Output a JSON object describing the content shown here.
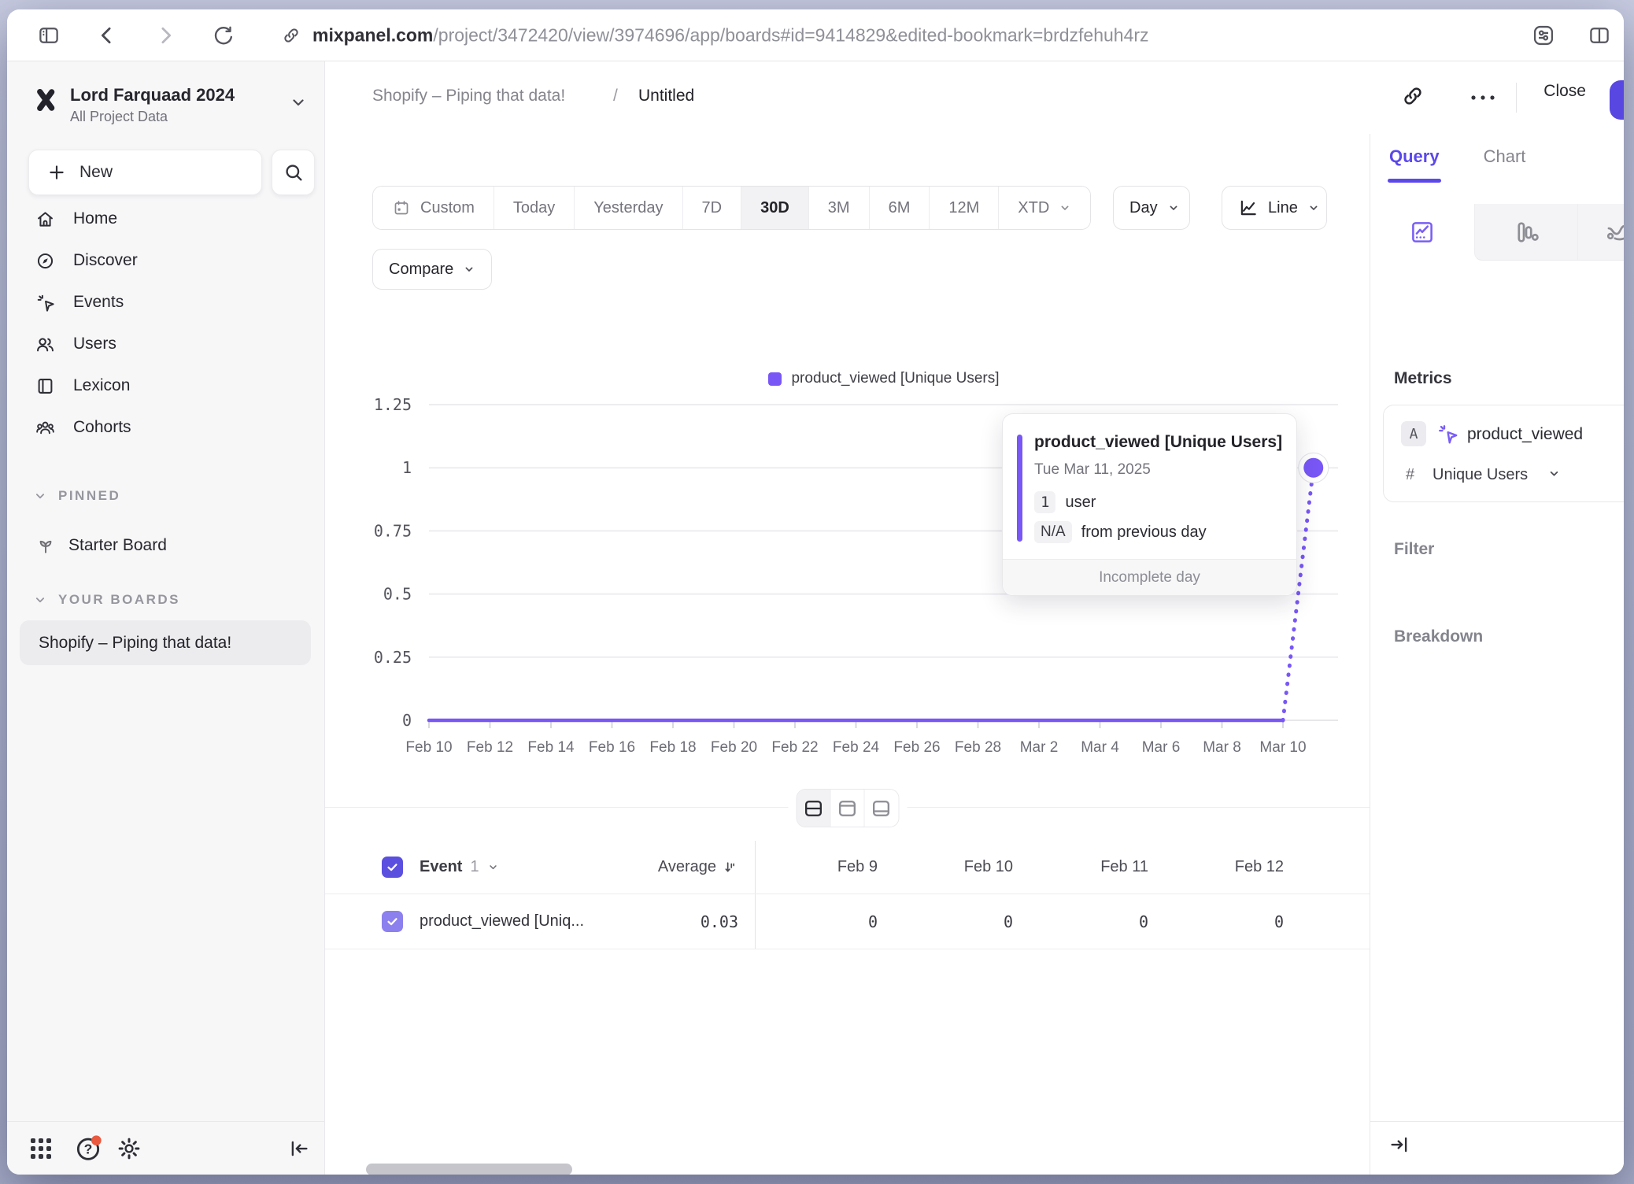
{
  "browser": {
    "url_host": "mixpanel.com",
    "url_path": "/project/3472420/view/3974696/app/boards#id=9414829&edited-bookmark=brdzfehuh4rz"
  },
  "workspace": {
    "name": "Lord Farquaad 2024",
    "subtitle": "All Project Data"
  },
  "sidebar": {
    "new_label": "New",
    "nav": [
      {
        "label": "Home"
      },
      {
        "label": "Discover"
      },
      {
        "label": "Events"
      },
      {
        "label": "Users"
      },
      {
        "label": "Lexicon"
      },
      {
        "label": "Cohorts"
      }
    ],
    "pinned_header": "PINNED",
    "pinned": [
      {
        "label": "Starter Board"
      }
    ],
    "boards_header": "YOUR BOARDS",
    "boards": [
      {
        "label": "Shopify – Piping that data!"
      }
    ]
  },
  "board_header": {
    "board": "Shopify – Piping that data!",
    "separator": "/",
    "page": "Untitled",
    "close": "Close"
  },
  "toolbar": {
    "ranges": [
      "Custom",
      "Today",
      "Yesterday",
      "7D",
      "30D",
      "3M",
      "6M",
      "12M",
      "XTD"
    ],
    "selected": "30D",
    "granularity": "Day",
    "chart_type": "Line",
    "compare": "Compare"
  },
  "chart_data": {
    "type": "line",
    "legend": "product_viewed [Unique Users]",
    "color": "#7857f6",
    "ylim": [
      0,
      1.25
    ],
    "y_ticks": [
      "0",
      "0.25",
      "0.5",
      "0.75",
      "1",
      "1.25"
    ],
    "x_tick_labels": [
      "Feb 10",
      "Feb 12",
      "Feb 14",
      "Feb 16",
      "Feb 18",
      "Feb 20",
      "Feb 22",
      "Feb 24",
      "Feb 26",
      "Feb 28",
      "Mar 2",
      "Mar 4",
      "Mar 6",
      "Mar 8",
      "Mar 10"
    ],
    "x_tick_every": 2,
    "values": [
      0,
      0,
      0,
      0,
      0,
      0,
      0,
      0,
      0,
      0,
      0,
      0,
      0,
      0,
      0,
      0,
      0,
      0,
      0,
      0,
      0,
      0,
      0,
      0,
      0,
      0,
      0,
      0,
      0,
      1
    ],
    "incomplete_last_point": true,
    "grid": "horizontal",
    "legend_position": "top-center"
  },
  "tooltip": {
    "title": "product_viewed [Unique Users]",
    "date": "Tue Mar 11, 2025",
    "value": "1",
    "unit": "user",
    "delta": "N/A",
    "delta_text": "from previous day",
    "footer": "Incomplete day"
  },
  "table": {
    "event_label": "Event",
    "event_count": "1",
    "average_label": "Average",
    "columns": [
      "Feb 9",
      "Feb 10",
      "Feb 11",
      "Feb 12"
    ],
    "rows": [
      {
        "name": "product_viewed [Uniq...",
        "average": "0.03",
        "values": [
          "0",
          "0",
          "0",
          "0"
        ]
      }
    ]
  },
  "query_panel": {
    "tabs": [
      "Query",
      "Chart"
    ],
    "active_tab": "Query",
    "metrics_header": "Metrics",
    "metric_letter": "A",
    "metric_event": "product_viewed",
    "agg_symbol": "#",
    "agg_label": "Unique Users",
    "filter_header": "Filter",
    "breakdown_header": "Breakdown"
  },
  "colors": {
    "accent": "#7857f6",
    "header_checkbox": "#5b4fe0",
    "row_checkbox": "#8c80ee",
    "notification_badge": "#e8593f",
    "save_button": "#5847e0",
    "active_tab": "#5b48ea"
  }
}
